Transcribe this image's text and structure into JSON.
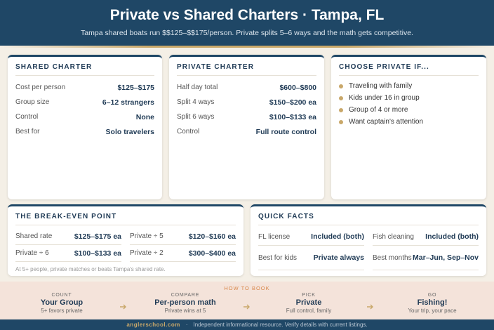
{
  "header": {
    "title": "Private vs Shared Charters · Tampa, FL",
    "subtitle": "Tampa shared boats run $$125–$$175/person. Private splits 5–6 ways and the math gets competitive."
  },
  "cards": [
    {
      "title": "SHARED CHARTER",
      "rows": [
        [
          "Cost per person",
          "$125–$175"
        ],
        [
          "Group size",
          "6–12 strangers"
        ],
        [
          "Control",
          "None"
        ],
        [
          "Best for",
          "Solo travelers"
        ]
      ]
    },
    {
      "title": "PRIVATE CHARTER",
      "rows": [
        [
          "Half day total",
          "$600–$800"
        ],
        [
          "Split 4 ways",
          "$150–$200 ea"
        ],
        [
          "Split 6 ways",
          "$100–$133 ea"
        ],
        [
          "Control",
          "Full route control"
        ]
      ]
    },
    {
      "title": "CHOOSE PRIVATE IF...",
      "items": [
        "Traveling with family",
        "Kids under 16 in group",
        "Group of 4 or more",
        "Want captain's attention"
      ]
    }
  ],
  "breakeven": {
    "title": "THE BREAK-EVEN POINT",
    "rows": [
      [
        "Shared rate",
        "$125–$175 ea",
        "Private ÷ 5",
        "$120–$160 ea"
      ],
      [
        "Private ÷ 6",
        "$100–$133 ea",
        "Private ÷ 2",
        "$300–$400 ea"
      ]
    ],
    "note": "At 5+ people, private matches or beats Tampa's shared rate."
  },
  "quick_facts": {
    "title": "QUICK FACTS",
    "rows": [
      [
        "FL license",
        "Included (both)",
        "Fish cleaning",
        "Included (both)"
      ],
      [
        "Best for kids",
        "Private always",
        "Best months",
        "Mar–Jun, Sep–Nov"
      ]
    ]
  },
  "how_to_book": {
    "title": "HOW TO BOOK",
    "steps": [
      {
        "kicker": "COUNT",
        "title": "Your Group",
        "sub": "5+ favors private"
      },
      {
        "kicker": "COMPARE",
        "title": "Per-person math",
        "sub": "Private wins at 5"
      },
      {
        "kicker": "PICK",
        "title": "Private",
        "sub": "Full control, family"
      },
      {
        "kicker": "GO",
        "title": "Fishing!",
        "sub": "Your trip, your pace"
      }
    ]
  },
  "footer": {
    "site": "anglerschool.com",
    "separator": "·",
    "note": "Independent informational resource. Verify details with current listings."
  }
}
